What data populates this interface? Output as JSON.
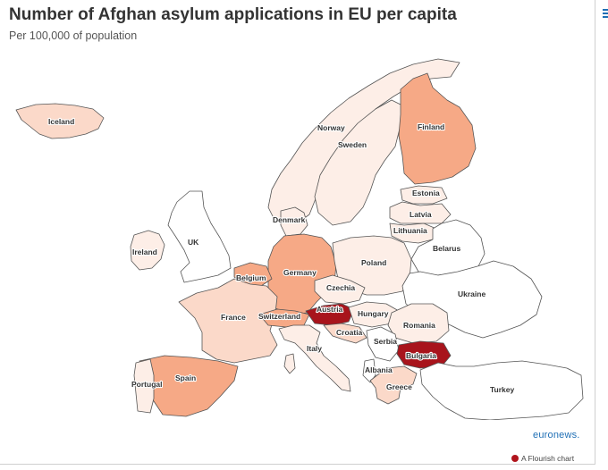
{
  "title": "Number of Afghan asylum applications in EU per capita",
  "subtitle": "Per 100,000 of population",
  "brand": "euronews.",
  "credit": "A Flourish chart",
  "colors": {
    "none": "#ffffff",
    "very_low": "#fdeee7",
    "low": "#fbd9c9",
    "medium": "#f6a986",
    "high": "#e8896a",
    "top": "#a8141c",
    "border": "#555555",
    "brand": "#1f6fb5"
  },
  "countries": [
    {
      "id": "iceland",
      "label": "Iceland",
      "level": "low"
    },
    {
      "id": "ireland",
      "label": "Ireland",
      "level": "very_low"
    },
    {
      "id": "uk",
      "label": "UK",
      "level": "none"
    },
    {
      "id": "norway",
      "label": "Norway",
      "level": "very_low"
    },
    {
      "id": "sweden",
      "label": "Sweden",
      "level": "very_low"
    },
    {
      "id": "finland",
      "label": "Finland",
      "level": "medium"
    },
    {
      "id": "estonia",
      "label": "Estonia",
      "level": "very_low"
    },
    {
      "id": "latvia",
      "label": "Latvia",
      "level": "very_low"
    },
    {
      "id": "lithuania",
      "label": "Lithuania",
      "level": "very_low"
    },
    {
      "id": "belarus",
      "label": "Belarus",
      "level": "none"
    },
    {
      "id": "denmark",
      "label": "Denmark",
      "level": "very_low"
    },
    {
      "id": "germany",
      "label": "Germany",
      "level": "medium"
    },
    {
      "id": "poland",
      "label": "Poland",
      "level": "very_low"
    },
    {
      "id": "ukraine",
      "label": "Ukraine",
      "level": "none"
    },
    {
      "id": "belgium",
      "label": "Belgium",
      "level": "medium"
    },
    {
      "id": "czechia",
      "label": "Czechia",
      "level": "very_low"
    },
    {
      "id": "france",
      "label": "France",
      "level": "low"
    },
    {
      "id": "switzerland",
      "label": "Switzerland",
      "level": "medium"
    },
    {
      "id": "austria",
      "label": "Austria",
      "level": "top"
    },
    {
      "id": "hungary",
      "label": "Hungary",
      "level": "very_low"
    },
    {
      "id": "romania",
      "label": "Romania",
      "level": "very_low"
    },
    {
      "id": "croatia",
      "label": "Croatia",
      "level": "low"
    },
    {
      "id": "serbia",
      "label": "Serbia",
      "level": "none"
    },
    {
      "id": "bulgaria",
      "label": "Bulgaria",
      "level": "top"
    },
    {
      "id": "italy",
      "label": "Italy",
      "level": "very_low"
    },
    {
      "id": "albania",
      "label": "Albania",
      "level": "none"
    },
    {
      "id": "greece",
      "label": "Greece",
      "level": "low"
    },
    {
      "id": "spain",
      "label": "Spain",
      "level": "medium"
    },
    {
      "id": "portugal",
      "label": "Portugal",
      "level": "very_low"
    },
    {
      "id": "turkey",
      "label": "Turkey",
      "level": "none"
    }
  ]
}
